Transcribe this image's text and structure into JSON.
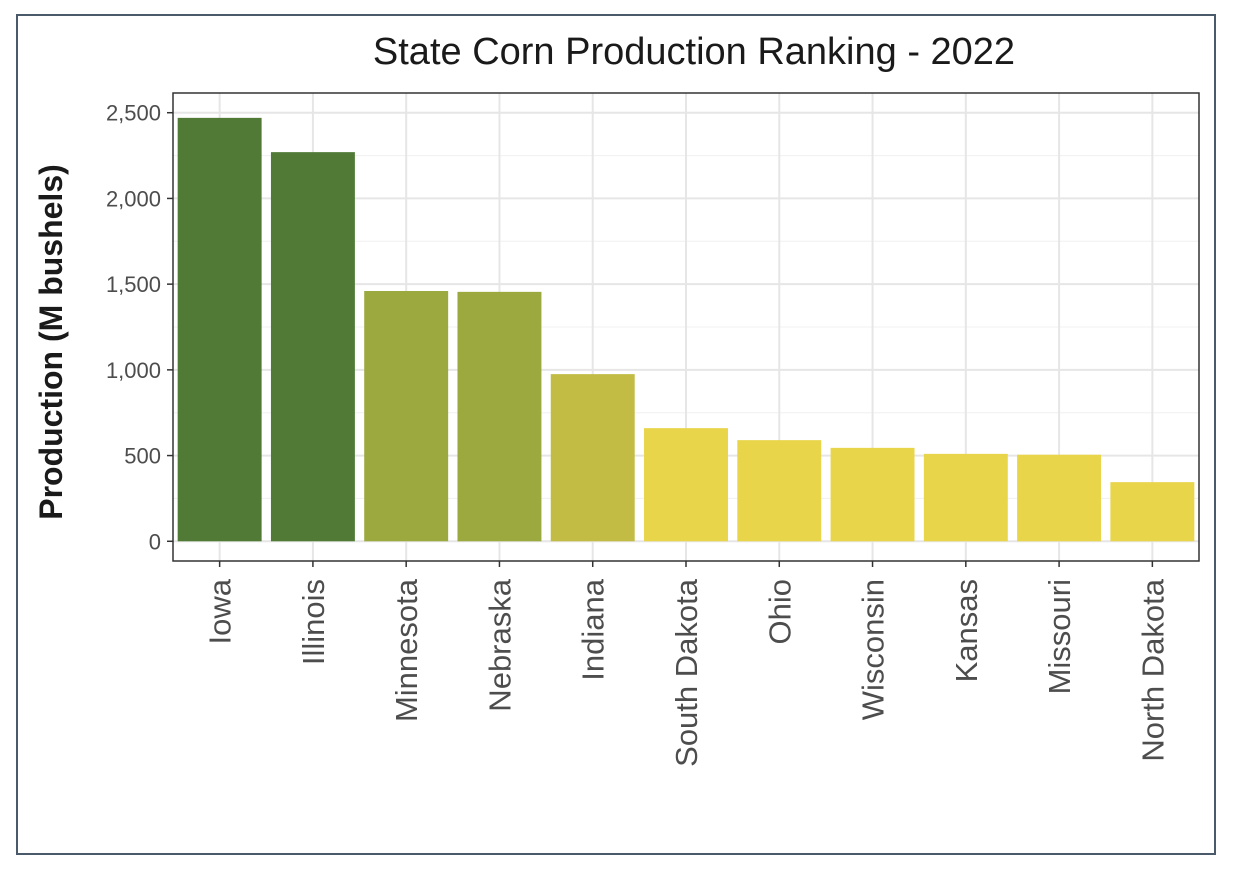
{
  "chart_data": {
    "type": "bar",
    "title": "State Corn Production Ranking - 2022",
    "xlabel": "",
    "ylabel": "Production (M bushels)",
    "categories": [
      "Iowa",
      "Illinois",
      "Minnesota",
      "Nebraska",
      "Indiana",
      "South Dakota",
      "Ohio",
      "Wisconsin",
      "Kansas",
      "Missouri",
      "North Dakota"
    ],
    "values": [
      2470,
      2270,
      1460,
      1455,
      975,
      660,
      590,
      545,
      510,
      505,
      345
    ],
    "bar_colors": [
      "#507a35",
      "#507a35",
      "#9ba93f",
      "#9ba93f",
      "#c2bc44",
      "#e8d54a",
      "#e8d54a",
      "#e8d54a",
      "#e8d54a",
      "#e8d54a",
      "#e8d54a"
    ],
    "ylim": [
      -115,
      2615
    ],
    "yticks": [
      0,
      500,
      1000,
      1500,
      2000,
      2500
    ],
    "ytick_labels": [
      "0",
      "500",
      "1,000",
      "1,500",
      "2,000",
      "2,500"
    ],
    "grid": true,
    "legend": "none"
  }
}
